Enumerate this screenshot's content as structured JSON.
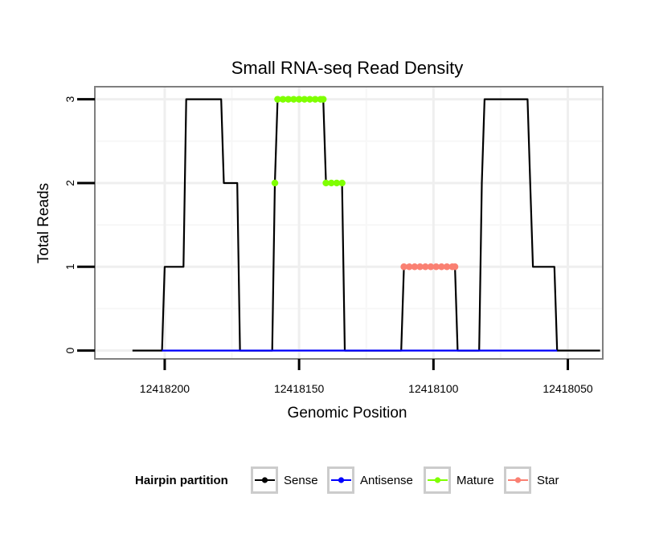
{
  "chart_data": {
    "type": "line",
    "title": "Small RNA-seq Read Density",
    "xlabel": "Genomic Position",
    "ylabel": "Total Reads",
    "x_reversed": true,
    "xlim": [
      12418226,
      12418037
    ],
    "ylim": [
      -0.1,
      3.15
    ],
    "x_ticks": [
      12418200,
      12418150,
      12418100,
      12418050
    ],
    "x_tick_labels": [
      "12418200",
      "12418150",
      "12418100",
      "12418050"
    ],
    "y_ticks": [
      0,
      1,
      2,
      3
    ],
    "y_tick_labels": [
      "0",
      "1",
      "2",
      "3"
    ],
    "grid": true,
    "legend": {
      "title": "Hairpin partition",
      "placement": "bottom",
      "entries": [
        "Sense",
        "Antisense",
        "Mature",
        "Star"
      ]
    },
    "colors": {
      "Sense": "#000000",
      "Antisense": "#0000ff",
      "Mature": "#7fff00",
      "Star": "#fa8072"
    },
    "series": [
      {
        "name": "Sense",
        "style": "line",
        "points": [
          [
            12418212,
            0
          ],
          [
            12418201,
            0
          ],
          [
            12418200,
            1
          ],
          [
            12418193,
            1
          ],
          [
            12418192,
            3
          ],
          [
            12418179,
            3
          ],
          [
            12418178,
            2
          ],
          [
            12418173,
            2
          ],
          [
            12418172,
            0
          ],
          [
            12418160,
            0
          ],
          [
            12418159,
            2
          ],
          [
            12418158,
            3
          ],
          [
            12418141,
            3
          ],
          [
            12418140,
            2
          ],
          [
            12418134,
            2
          ],
          [
            12418133,
            0
          ],
          [
            12418112,
            0
          ],
          [
            12418111,
            1
          ],
          [
            12418092,
            1
          ],
          [
            12418091,
            0
          ],
          [
            12418083,
            0
          ],
          [
            12418082,
            2
          ],
          [
            12418081,
            3
          ],
          [
            12418065,
            3
          ],
          [
            12418064,
            2
          ],
          [
            12418063,
            1
          ],
          [
            12418055,
            1
          ],
          [
            12418054,
            0
          ],
          [
            12418038,
            0
          ]
        ]
      },
      {
        "name": "Antisense",
        "style": "line",
        "points": [
          [
            12418201,
            0
          ],
          [
            12418054,
            0
          ]
        ]
      },
      {
        "name": "Mature",
        "style": "points",
        "points": [
          [
            12418159,
            2
          ],
          [
            12418158,
            3
          ],
          [
            12418156,
            3
          ],
          [
            12418154,
            3
          ],
          [
            12418152,
            3
          ],
          [
            12418150,
            3
          ],
          [
            12418148,
            3
          ],
          [
            12418146,
            3
          ],
          [
            12418144,
            3
          ],
          [
            12418142,
            3
          ],
          [
            12418141,
            3
          ],
          [
            12418140,
            2
          ],
          [
            12418138,
            2
          ],
          [
            12418136,
            2
          ],
          [
            12418134,
            2
          ]
        ]
      },
      {
        "name": "Star",
        "style": "points",
        "points": [
          [
            12418111,
            1
          ],
          [
            12418109,
            1
          ],
          [
            12418107,
            1
          ],
          [
            12418105,
            1
          ],
          [
            12418103,
            1
          ],
          [
            12418101,
            1
          ],
          [
            12418099,
            1
          ],
          [
            12418097,
            1
          ],
          [
            12418095,
            1
          ],
          [
            12418093,
            1
          ],
          [
            12418092,
            1
          ]
        ]
      }
    ]
  }
}
